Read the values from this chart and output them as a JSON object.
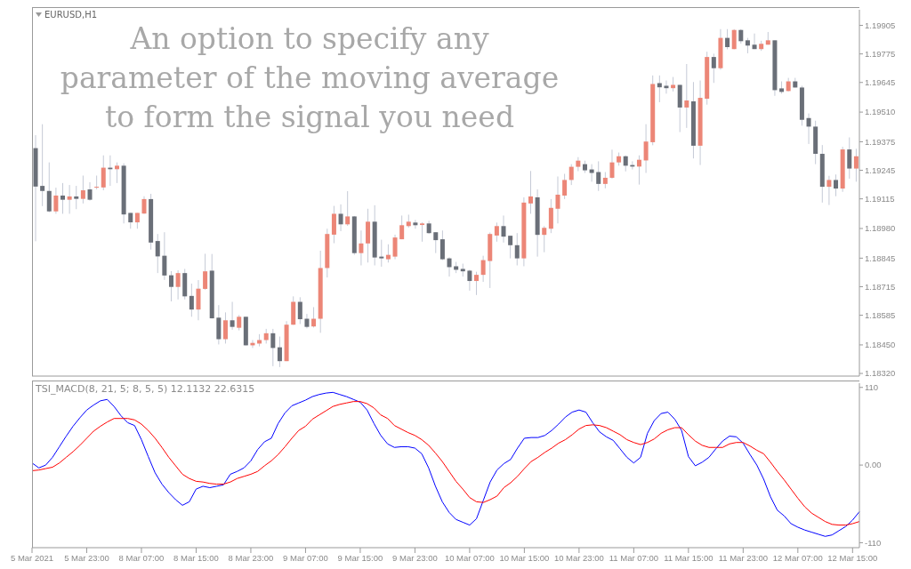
{
  "chart_data": [
    {
      "type": "candlestick",
      "annotations": [
        "EURUSD,H1",
        "An option to specify any parameter of the moving average to form the signal you need"
      ],
      "ohlc": [
        [
          1.19346,
          1.19405,
          1.18922,
          1.19171
        ],
        [
          1.19174,
          1.19455,
          1.19082,
          1.19151
        ],
        [
          1.19151,
          1.19281,
          1.19054,
          1.19058
        ],
        [
          1.19058,
          1.19166,
          1.19047,
          1.1913
        ],
        [
          1.1913,
          1.19187,
          1.19047,
          1.19111
        ],
        [
          1.19111,
          1.19178,
          1.19047,
          1.19126
        ],
        [
          1.19126,
          1.19174,
          1.19068,
          1.19115
        ],
        [
          1.19115,
          1.19221,
          1.19094,
          1.19154
        ],
        [
          1.19158,
          1.19191,
          1.19107,
          1.19111
        ],
        [
          1.19166,
          1.19221,
          1.19158,
          1.1917
        ],
        [
          1.19167,
          1.19313,
          1.19154,
          1.19257
        ],
        [
          1.19257,
          1.19313,
          1.19174,
          1.1925
        ],
        [
          1.1925,
          1.19281,
          1.19187,
          1.19266
        ],
        [
          1.19266,
          1.19277,
          1.19003,
          1.19044
        ],
        [
          1.19051,
          1.19051,
          1.18979,
          1.19008
        ],
        [
          1.19008,
          1.19051,
          1.18979,
          1.19051
        ],
        [
          1.19048,
          1.19127,
          1.19047,
          1.19114
        ],
        [
          1.19114,
          1.19138,
          1.18884,
          1.18916
        ],
        [
          1.18923,
          1.18955,
          1.18777,
          1.18853
        ],
        [
          1.18856,
          1.18963,
          1.18746,
          1.18766
        ],
        [
          1.18767,
          1.18786,
          1.18648,
          1.18714
        ],
        [
          1.18714,
          1.1879,
          1.18657,
          1.18777
        ],
        [
          1.18777,
          1.18796,
          1.18657,
          1.18671
        ],
        [
          1.18673,
          1.18729,
          1.18578,
          1.18611
        ],
        [
          1.18611,
          1.18745,
          1.18562,
          1.18706
        ],
        [
          1.18705,
          1.18865,
          1.18701,
          1.18785
        ],
        [
          1.18788,
          1.18864,
          1.1857,
          1.18571
        ],
        [
          1.18574,
          1.18631,
          1.18452,
          1.18476
        ],
        [
          1.18476,
          1.18598,
          1.18456,
          1.18562
        ],
        [
          1.18562,
          1.18646,
          1.18519,
          1.18532
        ],
        [
          1.18528,
          1.18586,
          1.18516,
          1.18578
        ],
        [
          1.18578,
          1.18578,
          1.18447,
          1.18448
        ],
        [
          1.18448,
          1.18472,
          1.18436,
          1.18459
        ],
        [
          1.18456,
          1.18499,
          1.18443,
          1.18472
        ],
        [
          1.18472,
          1.18523,
          1.18456,
          1.18503
        ],
        [
          1.18503,
          1.18523,
          1.18353,
          1.18436
        ],
        [
          1.18439,
          1.18488,
          1.18349,
          1.18376
        ],
        [
          1.18376,
          1.18558,
          1.18376,
          1.18542
        ],
        [
          1.18542,
          1.18671,
          1.18541,
          1.18646
        ],
        [
          1.18646,
          1.18667,
          1.18545,
          1.18567
        ],
        [
          1.18569,
          1.18591,
          1.18525,
          1.18532
        ],
        [
          1.18534,
          1.18622,
          1.18529,
          1.18569
        ],
        [
          1.18569,
          1.18879,
          1.18505,
          1.188
        ],
        [
          1.188,
          1.18979,
          1.18757,
          1.18955
        ],
        [
          1.18952,
          1.19083,
          1.18913,
          1.19047
        ],
        [
          1.19047,
          1.1909,
          1.18968,
          1.18999
        ],
        [
          1.18999,
          1.1915,
          1.18992,
          1.19035
        ],
        [
          1.19035,
          1.19037,
          1.1886,
          1.18868
        ],
        [
          1.18868,
          1.18971,
          1.18812,
          1.18912
        ],
        [
          1.18912,
          1.1907,
          1.18825,
          1.19011
        ],
        [
          1.19011,
          1.19086,
          1.18812,
          1.18848
        ],
        [
          1.18852,
          1.18929,
          1.18806,
          1.18844
        ],
        [
          1.1884,
          1.18908,
          1.18825,
          1.1886
        ],
        [
          1.18852,
          1.18952,
          1.1884,
          1.18939
        ],
        [
          1.18931,
          1.19039,
          1.18931,
          1.18995
        ],
        [
          1.18991,
          1.19043,
          1.18984,
          1.19011
        ],
        [
          1.19007,
          1.19019,
          1.18979,
          1.18995
        ],
        [
          1.18996,
          1.19008,
          1.1892,
          1.19003
        ],
        [
          1.19003,
          1.19015,
          1.18955,
          1.18959
        ],
        [
          1.18963,
          1.18963,
          1.18868,
          1.18927
        ],
        [
          1.18931,
          1.18971,
          1.18836,
          1.1884
        ],
        [
          1.18844,
          1.18849,
          1.18761,
          1.18804
        ],
        [
          1.18808,
          1.18828,
          1.18777,
          1.18792
        ],
        [
          1.18796,
          1.1882,
          1.18761,
          1.18785
        ],
        [
          1.18788,
          1.18792,
          1.18697,
          1.18741
        ],
        [
          1.18741,
          1.18783,
          1.18677,
          1.18769
        ],
        [
          1.18769,
          1.18856,
          1.18737,
          1.18836
        ],
        [
          1.18832,
          1.18962,
          1.18709,
          1.18955
        ],
        [
          1.18948,
          1.19007,
          1.1892,
          1.18991
        ],
        [
          1.18991,
          1.19039,
          1.18916,
          1.18943
        ],
        [
          1.18947,
          1.18947,
          1.18844,
          1.18904
        ],
        [
          1.18904,
          1.18959,
          1.18812,
          1.18844
        ],
        [
          1.18844,
          1.19122,
          1.18808,
          1.19098
        ],
        [
          1.19094,
          1.19242,
          1.19047,
          1.19126
        ],
        [
          1.19122,
          1.19158,
          1.18852,
          1.18951
        ],
        [
          1.18951,
          1.18991,
          1.18872,
          1.18983
        ],
        [
          1.18979,
          1.19114,
          1.18959,
          1.19074
        ],
        [
          1.1907,
          1.19217,
          1.19003,
          1.19134
        ],
        [
          1.1913,
          1.19229,
          1.19114,
          1.19201
        ],
        [
          1.19201,
          1.19273,
          1.19178,
          1.19261
        ],
        [
          1.19261,
          1.19305,
          1.19241,
          1.19289
        ],
        [
          1.19273,
          1.19289,
          1.19233,
          1.19245
        ],
        [
          1.19249,
          1.19273,
          1.19193,
          1.19233
        ],
        [
          1.19237,
          1.19286,
          1.19151,
          1.19183
        ],
        [
          1.19183,
          1.19237,
          1.19163,
          1.19211
        ],
        [
          1.19211,
          1.19339,
          1.19207,
          1.19281
        ],
        [
          1.19281,
          1.19326,
          1.19266,
          1.19309
        ],
        [
          1.19309,
          1.19313,
          1.1924,
          1.19266
        ],
        [
          1.19269,
          1.19286,
          1.19249,
          1.19262
        ],
        [
          1.19262,
          1.19313,
          1.1918,
          1.19293
        ],
        [
          1.1929,
          1.19455,
          1.19233,
          1.19376
        ],
        [
          1.19373,
          1.19677,
          1.19359,
          1.19638
        ],
        [
          1.19642,
          1.19677,
          1.19555,
          1.19623
        ],
        [
          1.1963,
          1.19654,
          1.19594,
          1.19619
        ],
        [
          1.19619,
          1.1967,
          1.19604,
          1.19634
        ],
        [
          1.19634,
          1.19634,
          1.19419,
          1.19531
        ],
        [
          1.19531,
          1.19729,
          1.19438,
          1.19563
        ],
        [
          1.19559,
          1.19647,
          1.19299,
          1.19357
        ],
        [
          1.19357,
          1.19654,
          1.19269,
          1.19575
        ],
        [
          1.19571,
          1.19785,
          1.19544,
          1.19761
        ],
        [
          1.19761,
          1.19776,
          1.19643,
          1.1971
        ],
        [
          1.1971,
          1.19888,
          1.19703,
          1.19848
        ],
        [
          1.19848,
          1.19888,
          1.19796,
          1.19806
        ],
        [
          1.19797,
          1.19888,
          1.19796,
          1.19884
        ],
        [
          1.19884,
          1.19888,
          1.19822,
          1.19833
        ],
        [
          1.19837,
          1.19848,
          1.19778,
          1.19813
        ],
        [
          1.19817,
          1.19868,
          1.19797,
          1.19797
        ],
        [
          1.19797,
          1.19835,
          1.19789,
          1.19821
        ],
        [
          1.19817,
          1.19875,
          1.19817,
          1.19837
        ],
        [
          1.19837,
          1.19837,
          1.19584,
          1.1961
        ],
        [
          1.19618,
          1.1965,
          1.19594,
          1.19602
        ],
        [
          1.19606,
          1.19666,
          1.19604,
          1.1965
        ],
        [
          1.1965,
          1.19666,
          1.19622,
          1.19622
        ],
        [
          1.19622,
          1.1963,
          1.19448,
          1.19475
        ],
        [
          1.19483,
          1.19504,
          1.19365,
          1.19444
        ],
        [
          1.19444,
          1.19471,
          1.19273,
          1.1932
        ],
        [
          1.1932,
          1.1936,
          1.19098,
          1.1917
        ],
        [
          1.1917,
          1.1922,
          1.19087,
          1.19201
        ],
        [
          1.19201,
          1.19226,
          1.19127,
          1.19162
        ],
        [
          1.19162,
          1.19352,
          1.19147,
          1.1934
        ],
        [
          1.1934,
          1.19395,
          1.19207,
          1.19253
        ],
        [
          1.19253,
          1.19343,
          1.19193,
          1.19309
        ]
      ],
      "colors": [
        "#6a6f78",
        "#6a6f78",
        "#6a6f78",
        "#ec8677",
        "#6a6f78",
        "#ec8677",
        "#6a6f78",
        "#ec8677",
        "#6a6f78",
        "#ec8677",
        "#ec8677",
        "#6a6f78",
        "#ec8677",
        "#6a6f78",
        "#6a6f78",
        "#ec8677",
        "#ec8677",
        "#6a6f78",
        "#6a6f78",
        "#6a6f78",
        "#6a6f78",
        "#ec8677",
        "#6a6f78",
        "#6a6f78",
        "#ec8677",
        "#ec8677",
        "#6a6f78",
        "#6a6f78",
        "#ec8677",
        "#6a6f78",
        "#ec8677",
        "#6a6f78",
        "#ec8677",
        "#ec8677",
        "#ec8677",
        "#6a6f78",
        "#6a6f78",
        "#ec8677",
        "#ec8677",
        "#6a6f78",
        "#6a6f78",
        "#ec8677",
        "#ec8677",
        "#ec8677",
        "#ec8677",
        "#6a6f78",
        "#ec8677",
        "#6a6f78",
        "#ec8677",
        "#ec8677",
        "#6a6f78",
        "#6a6f78",
        "#ec8677",
        "#ec8677",
        "#ec8677",
        "#ec8677",
        "#6a6f78",
        "#ec8677",
        "#6a6f78",
        "#6a6f78",
        "#6a6f78",
        "#6a6f78",
        "#6a6f78",
        "#6a6f78",
        "#6a6f78",
        "#ec8677",
        "#ec8677",
        "#ec8677",
        "#ec8677",
        "#6a6f78",
        "#6a6f78",
        "#6a6f78",
        "#ec8677",
        "#ec8677",
        "#6a6f78",
        "#ec8677",
        "#ec8677",
        "#ec8677",
        "#ec8677",
        "#ec8677",
        "#ec8677",
        "#6a6f78",
        "#6a6f78",
        "#6a6f78",
        "#ec8677",
        "#ec8677",
        "#ec8677",
        "#6a6f78",
        "#6a6f78",
        "#ec8677",
        "#ec8677",
        "#ec8677",
        "#6a6f78",
        "#6a6f78",
        "#ec8677",
        "#6a6f78",
        "#ec8677",
        "#6a6f78",
        "#ec8677",
        "#ec8677",
        "#6a6f78",
        "#ec8677",
        "#6a6f78",
        "#ec8677",
        "#6a6f78",
        "#6a6f78",
        "#6a6f78",
        "#ec8677",
        "#ec8677",
        "#6a6f78",
        "#6a6f78",
        "#ec8677",
        "#6a6f78",
        "#6a6f78",
        "#6a6f78",
        "#6a6f78",
        "#6a6f78",
        "#ec8677",
        "#6a6f78",
        "#ec8677",
        "#6a6f78",
        "#ec8677"
      ],
      "ylim": [
        1.18308,
        1.19976
      ],
      "yticks": [
        {
          "value": 1.1832,
          "label": "1.18320"
        },
        {
          "value": 1.1845,
          "label": "1.18450"
        },
        1.18585,
        1.18715,
        1.18845,
        {
          "value": 1.1898,
          "label": "1.18980"
        },
        1.19115,
        1.19245,
        1.19375,
        {
          "value": 1.1951,
          "label": "1.19510"
        },
        1.19645,
        1.19775,
        1.19905
      ],
      "tick_labels": "y"
    },
    {
      "type": "line",
      "title": "TSI_MACD(8, 21, 5; 8, 5, 5) 12.1132 22.6315",
      "categories": [
        "5 Mar 2021",
        null,
        null,
        null,
        null,
        null,
        null,
        null,
        "5 Mar 23:00",
        null,
        null,
        null,
        null,
        null,
        null,
        null,
        "8 Mar 07:00",
        null,
        null,
        null,
        null,
        null,
        null,
        null,
        "8 Mar 15:00",
        null,
        null,
        null,
        null,
        null,
        null,
        null,
        "8 Mar 23:00",
        null,
        null,
        null,
        null,
        null,
        null,
        null,
        "9 Mar 07:00",
        null,
        null,
        null,
        null,
        null,
        null,
        null,
        "9 Mar 15:00",
        null,
        null,
        null,
        null,
        null,
        null,
        null,
        "9 Mar 23:00",
        null,
        null,
        null,
        null,
        null,
        null,
        null,
        "10 Mar 07:00",
        null,
        null,
        null,
        null,
        null,
        null,
        null,
        "10 Mar 15:00",
        null,
        null,
        null,
        null,
        null,
        null,
        null,
        "10 Mar 23:00",
        null,
        null,
        null,
        null,
        null,
        null,
        null,
        "11 Mar 07:00",
        null,
        null,
        null,
        null,
        null,
        null,
        null,
        "11 Mar 15:00",
        null,
        null,
        null,
        null,
        null,
        null,
        null,
        "11 Mar 23:00",
        null,
        null,
        null,
        null,
        null,
        null,
        null,
        "12 Mar 07:00",
        null,
        null,
        null,
        null,
        null,
        null,
        null,
        "12 Mar 15:00",
        null
      ],
      "series": [
        {
          "color": "#0000ff",
          "values": [
            3,
            -4,
            0,
            11,
            26,
            41,
            55,
            67,
            78,
            85,
            91,
            93,
            83,
            70,
            60,
            56,
            36,
            12,
            -11,
            -27,
            -39,
            -49,
            -57,
            -52,
            -34,
            -30,
            -32,
            -30,
            -28,
            -13,
            -9,
            -4,
            6,
            22,
            33,
            38,
            59,
            74,
            84,
            88,
            92,
            97,
            100,
            102,
            103,
            100,
            97,
            93,
            89,
            78,
            59,
            42,
            30,
            25,
            26,
            26,
            24,
            16,
            -4,
            -30,
            -52,
            -67,
            -77,
            -81,
            -85,
            -76,
            -50,
            -24,
            -7,
            2,
            8,
            24,
            38,
            39,
            39,
            42,
            49,
            58,
            68,
            75,
            78,
            75,
            60,
            47,
            40,
            35,
            23,
            11,
            3,
            11,
            45,
            63,
            73,
            75,
            65,
            49,
            12,
            -1,
            4,
            11,
            23,
            34,
            41,
            40,
            31,
            15,
            0,
            -20,
            -45,
            -64,
            -72,
            -83,
            -88,
            -92,
            -95,
            -98,
            -101,
            -99,
            -93,
            -87,
            -78,
            -66
          ]
        },
        {
          "color": "#ff0000",
          "values": [
            -8,
            -7,
            -5,
            -3,
            3,
            11,
            19,
            28,
            38,
            48,
            55,
            61,
            66,
            66,
            66,
            64,
            58,
            49,
            38,
            25,
            11,
            -1,
            -13,
            -19,
            -23,
            -24,
            -26,
            -27,
            -27,
            -24,
            -19,
            -16,
            -13,
            -9,
            -1,
            6,
            15,
            26,
            38,
            49,
            55,
            65,
            71,
            77,
            83,
            86,
            88,
            90,
            90,
            87,
            81,
            71,
            66,
            56,
            51,
            46,
            42,
            36,
            28,
            17,
            5,
            -9,
            -23,
            -34,
            -46,
            -52,
            -53,
            -49,
            -44,
            -32,
            -25,
            -16,
            -5,
            5,
            11,
            18,
            24,
            31,
            36,
            43,
            51,
            56,
            57,
            56,
            53,
            48,
            43,
            36,
            32,
            29,
            32,
            37,
            45,
            50,
            53,
            53,
            43,
            34,
            28,
            25,
            25,
            25,
            30,
            32,
            32,
            27,
            21,
            16,
            4,
            -9,
            -21,
            -34,
            -47,
            -59,
            -68,
            -74,
            -80,
            -84,
            -85,
            -85,
            -83,
            -80
          ]
        }
      ],
      "ylim": [
        -117,
        116
      ],
      "yticks": [
        -110,
        {
          "value": 0,
          "label": "0.00"
        },
        110
      ]
    }
  ]
}
